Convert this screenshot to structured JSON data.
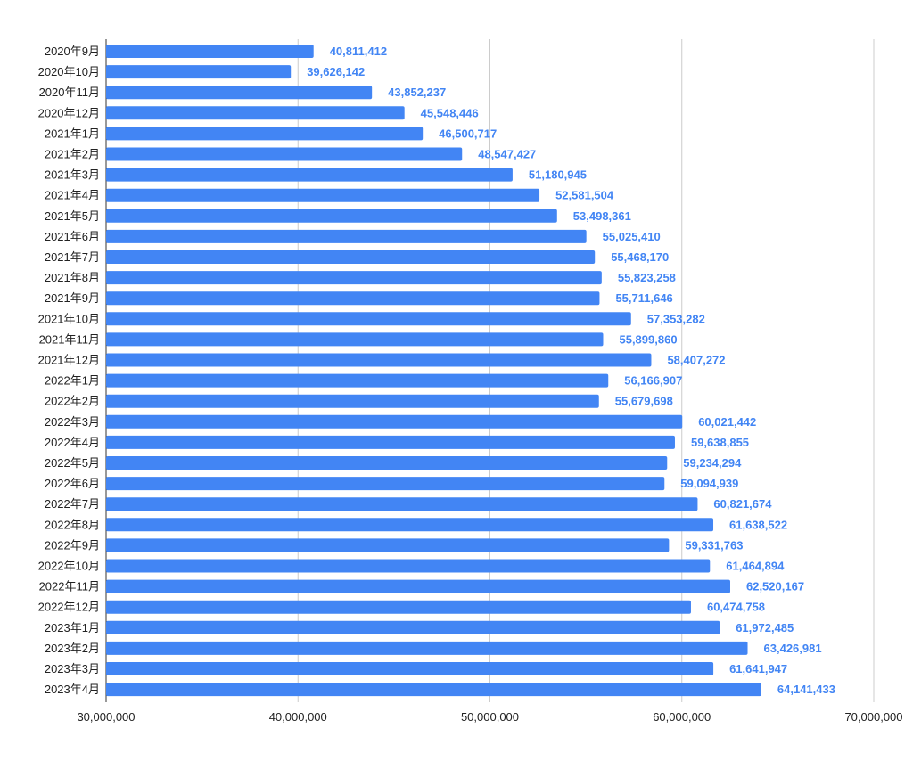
{
  "chart_data": {
    "type": "bar",
    "orientation": "horizontal",
    "title": "",
    "xlabel": "",
    "ylabel": "",
    "xlim": [
      30000000,
      70000000
    ],
    "x_ticks": [
      30000000,
      40000000,
      50000000,
      60000000,
      70000000
    ],
    "x_tick_labels": [
      "30,000,000",
      "40,000,000",
      "50,000,000",
      "60,000,000",
      "70,000,000"
    ],
    "grid": "vertical",
    "legend": "none",
    "bar_color": "#4285f4",
    "label_color": "#4285f4",
    "categories": [
      "2020年9月",
      "2020年10月",
      "2020年11月",
      "2020年12月",
      "2021年1月",
      "2021年2月",
      "2021年3月",
      "2021年4月",
      "2021年5月",
      "2021年6月",
      "2021年7月",
      "2021年8月",
      "2021年9月",
      "2021年10月",
      "2021年11月",
      "2021年12月",
      "2022年1月",
      "2022年2月",
      "2022年3月",
      "2022年4月",
      "2022年5月",
      "2022年6月",
      "2022年7月",
      "2022年8月",
      "2022年9月",
      "2022年10月",
      "2022年11月",
      "2022年12月",
      "2023年1月",
      "2023年2月",
      "2023年3月",
      "2023年4月"
    ],
    "values": [
      40811412,
      39626142,
      43852237,
      45548446,
      46500717,
      48547427,
      51180945,
      52581504,
      53498361,
      55025410,
      55468170,
      55823258,
      55711646,
      57353282,
      55899860,
      58407272,
      56166907,
      55679698,
      60021442,
      59638855,
      59234294,
      59094939,
      60821674,
      61638522,
      59331763,
      61464894,
      62520167,
      60474758,
      61972485,
      63426981,
      61641947,
      64141433
    ],
    "value_labels": [
      "40,811,412",
      "39,626,142",
      "43,852,237",
      "45,548,446",
      "46,500,717",
      "48,547,427",
      "51,180,945",
      "52,581,504",
      "53,498,361",
      "55,025,410",
      "55,468,170",
      "55,823,258",
      "55,711,646",
      "57,353,282",
      "55,899,860",
      "58,407,272",
      "56,166,907",
      "55,679,698",
      "60,021,442",
      "59,638,855",
      "59,234,294",
      "59,094,939",
      "60,821,674",
      "61,638,522",
      "59,331,763",
      "61,464,894",
      "62,520,167",
      "60,474,758",
      "61,972,485",
      "63,426,981",
      "61,641,947",
      "64,141,433"
    ]
  }
}
